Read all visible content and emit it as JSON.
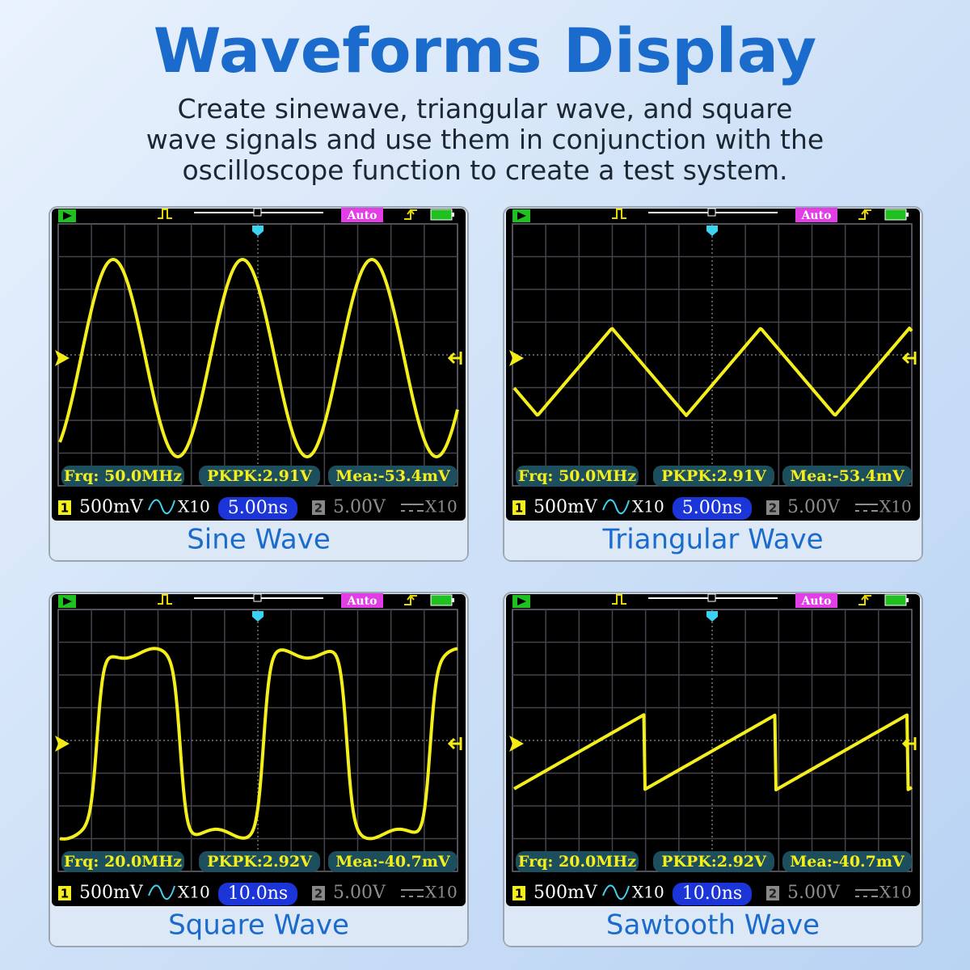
{
  "header": {
    "title": "Waveforms Display",
    "subtitle": [
      "Create sinewave, triangular wave, and square",
      "wave signals and use them in conjunction with the",
      "oscilloscope function to create a test system."
    ]
  },
  "panels": [
    {
      "trigger_mode": "Auto",
      "measurements": [
        "Frq: 50.0MHz",
        "PKPK:2.91V",
        "Mea:-53.4mV"
      ],
      "channel1": {
        "number": "1",
        "scale": "500mV",
        "probe": "X10"
      },
      "timebase": "5.00ns",
      "channel2": {
        "number": "2",
        "scale": "5.00V",
        "probe": "X10"
      },
      "caption": "Sine Wave"
    },
    {
      "trigger_mode": "Auto",
      "measurements": [
        "Frq: 50.0MHz",
        "PKPK:2.91V",
        "Mea:-53.4mV"
      ],
      "channel1": {
        "number": "1",
        "scale": "500mV",
        "probe": "X10"
      },
      "timebase": "5.00ns",
      "channel2": {
        "number": "2",
        "scale": "5.00V",
        "probe": "X10"
      },
      "caption": "Triangular Wave"
    },
    {
      "trigger_mode": "Auto",
      "measurements": [
        "Frq: 20.0MHz",
        "PKPK:2.92V",
        "Mea:-40.7mV"
      ],
      "channel1": {
        "number": "1",
        "scale": "500mV",
        "probe": "X10"
      },
      "timebase": "10.0ns",
      "channel2": {
        "number": "2",
        "scale": "5.00V",
        "probe": "X10"
      },
      "caption": "Square Wave"
    },
    {
      "trigger_mode": "Auto",
      "measurements": [
        "Frq: 20.0MHz",
        "PKPK:2.92V",
        "Mea:-40.7mV"
      ],
      "channel1": {
        "number": "1",
        "scale": "500mV",
        "probe": "X10"
      },
      "timebase": "10.0ns",
      "channel2": {
        "number": "2",
        "scale": "5.00V",
        "probe": "X10"
      },
      "caption": "Sawtooth Wave"
    }
  ]
}
